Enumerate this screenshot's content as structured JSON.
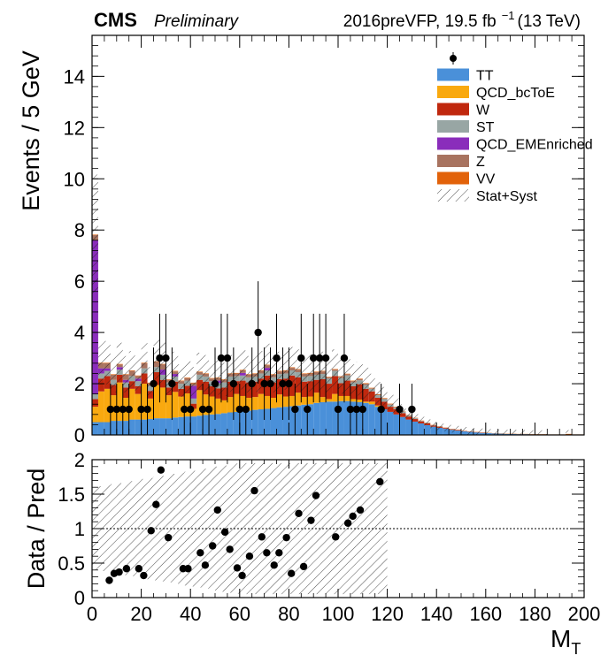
{
  "header": {
    "experiment": "CMS",
    "status": "Preliminary",
    "lumi_prefix": "2016preVFP, 19.5 fb",
    "lumi_exp": "−1",
    "lumi_suffix": "(13 TeV)"
  },
  "colors": {
    "TT": "#4a90d9",
    "QCD_bcToE": "#f9a90f",
    "W": "#c0280e",
    "ST": "#98a6a4",
    "QCD_EMEnriched": "#8a2dbb",
    "Z": "#a87360",
    "VV": "#e2620a"
  },
  "chart_data": [
    {
      "type": "bar",
      "stacked": true,
      "ylabel": "Events / 5 GeV",
      "xlim": [
        0,
        200
      ],
      "ylim": [
        0,
        15.6
      ],
      "bin_width": 2.5,
      "x_start": 0,
      "x_ticks": [
        0,
        20,
        40,
        60,
        80,
        100,
        120,
        140,
        160,
        180,
        200
      ],
      "y_ticks": [
        0,
        2,
        4,
        6,
        8,
        10,
        12,
        14
      ],
      "legend_position": "top-right",
      "series": [
        {
          "name": "TT",
          "values": [
            0.5,
            0.5,
            0.5,
            0.55,
            0.55,
            0.55,
            0.6,
            0.6,
            0.6,
            0.62,
            0.65,
            0.65,
            0.65,
            0.68,
            0.7,
            0.72,
            0.72,
            0.75,
            0.78,
            0.8,
            0.82,
            0.85,
            0.88,
            0.9,
            0.92,
            0.95,
            0.98,
            1.0,
            1.02,
            1.05,
            1.08,
            1.1,
            1.12,
            1.15,
            1.18,
            1.2,
            1.25,
            1.28,
            1.3,
            1.3,
            1.32,
            1.32,
            1.3,
            1.28,
            1.25,
            1.2,
            1.1,
            1.0,
            0.9,
            0.8,
            0.7,
            0.6,
            0.52,
            0.45,
            0.38,
            0.32,
            0.28,
            0.24,
            0.2,
            0.17,
            0.14,
            0.12,
            0.1,
            0.08,
            0.07,
            0.06,
            0.05,
            0.04,
            0.04,
            0.03,
            0.03,
            0.02,
            0.02,
            0.02,
            0.01,
            0.01,
            0.01,
            0.01,
            0.01,
            0.01
          ]
        },
        {
          "name": "QCD_bcToE",
          "values": [
            0.6,
            1.2,
            1.3,
            1.0,
            1.5,
            0.9,
            1.2,
            1.0,
            1.4,
            0.8,
            1.3,
            1.2,
            0.9,
            1.0,
            0.8,
            0.9,
            0.3,
            1.0,
            0.8,
            0.7,
            0.6,
            0.5,
            0.6,
            0.7,
            0.6,
            0.5,
            0.5,
            0.6,
            0.5,
            0.4,
            0.5,
            0.4,
            0.4,
            0.5,
            0.3,
            0.3,
            0.4,
            0.2,
            0.1,
            0.3,
            0.2,
            0.2,
            0.1,
            0.1,
            0.05,
            0.1,
            0.05,
            0.0,
            0.0,
            0.0,
            0,
            0,
            0,
            0,
            0,
            0,
            0,
            0,
            0,
            0,
            0,
            0,
            0,
            0,
            0,
            0,
            0,
            0,
            0,
            0,
            0,
            0,
            0,
            0,
            0,
            0,
            0,
            0,
            0,
            0
          ]
        },
        {
          "name": "W",
          "values": [
            0.3,
            0.5,
            0.5,
            0.4,
            0.3,
            0.4,
            0.3,
            0.3,
            0.4,
            0.3,
            0.5,
            0.3,
            0.3,
            0.4,
            0.3,
            0.3,
            0.2,
            0.4,
            0.5,
            0.4,
            0.4,
            0.5,
            0.6,
            0.5,
            0.6,
            0.6,
            0.6,
            0.6,
            0.8,
            0.6,
            0.6,
            0.7,
            0.8,
            0.6,
            0.6,
            0.6,
            0.5,
            0.7,
            0.6,
            0.7,
            0.5,
            0.6,
            0.5,
            0.6,
            0.5,
            0.4,
            0.3,
            0.3,
            0.2,
            0.2,
            0.15,
            0.12,
            0.1,
            0.08,
            0.07,
            0.05,
            0.04,
            0.03,
            0.02,
            0.02,
            0.01,
            0.01,
            0.01,
            0.01,
            0,
            0,
            0,
            0,
            0,
            0,
            0,
            0,
            0,
            0,
            0,
            0,
            0,
            0,
            0,
            0
          ]
        },
        {
          "name": "ST",
          "values": [
            0.2,
            0.2,
            0.2,
            0.2,
            0.2,
            0.2,
            0.2,
            0.2,
            0.2,
            0.2,
            0.2,
            0.2,
            0.2,
            0.2,
            0.2,
            0.2,
            0.2,
            0.2,
            0.2,
            0.2,
            0.2,
            0.2,
            0.2,
            0.2,
            0.2,
            0.2,
            0.2,
            0.2,
            0.2,
            0.2,
            0.2,
            0.2,
            0.2,
            0.2,
            0.2,
            0.2,
            0.2,
            0.2,
            0.2,
            0.2,
            0.2,
            0.2,
            0.15,
            0.15,
            0.15,
            0.1,
            0.1,
            0.1,
            0.08,
            0.06,
            0.05,
            0.04,
            0.03,
            0.02,
            0.02,
            0.01,
            0.01,
            0.01,
            0.01,
            0,
            0,
            0,
            0,
            0,
            0,
            0,
            0,
            0,
            0,
            0,
            0,
            0,
            0,
            0,
            0,
            0,
            0,
            0,
            0,
            0
          ]
        },
        {
          "name": "QCD_EMEnriched",
          "values": [
            6.0,
            0.2,
            0.1,
            0.0,
            0.1,
            0.1,
            0.0,
            0.1,
            0.0,
            0.0,
            0.0,
            0.2,
            0.0,
            0.1,
            0.0,
            0.0,
            0.5,
            0.0,
            0.0,
            0.0,
            0.1,
            0.0,
            0.0,
            0.0,
            0.1,
            0.0,
            0.0,
            0.0,
            0.1,
            0.0,
            0.0,
            0.0,
            0.0,
            0.0,
            0.0,
            0.0,
            0.0,
            0.0,
            0.0,
            0.0,
            0,
            0,
            0,
            0,
            0,
            0,
            0,
            0,
            0,
            0,
            0,
            0,
            0,
            0,
            0,
            0,
            0,
            0,
            0,
            0,
            0,
            0,
            0,
            0,
            0,
            0,
            0,
            0,
            0,
            0,
            0,
            0,
            0,
            0,
            0,
            0,
            0,
            0,
            0,
            0
          ]
        },
        {
          "name": "Z",
          "values": [
            0.2,
            0.2,
            0.2,
            0.2,
            0.1,
            0.2,
            0.2,
            0.1,
            0.2,
            0.1,
            0.2,
            0.2,
            0.1,
            0.1,
            0.1,
            0.1,
            0.1,
            0.1,
            0.1,
            0.1,
            0.1,
            0.1,
            0.1,
            0.1,
            0.1,
            0.1,
            0.1,
            0.1,
            0.1,
            0.1,
            0.1,
            0.1,
            0.1,
            0.1,
            0.1,
            0.1,
            0.1,
            0.1,
            0.05,
            0.05,
            0.05,
            0.05,
            0.05,
            0.05,
            0.05,
            0.02,
            0.02,
            0.02,
            0.02,
            0.02,
            0.01,
            0.01,
            0.01,
            0,
            0,
            0,
            0,
            0,
            0,
            0,
            0,
            0,
            0,
            0,
            0,
            0,
            0,
            0,
            0,
            0,
            0,
            0,
            0,
            0,
            0,
            0,
            0,
            0,
            0,
            0
          ]
        },
        {
          "name": "VV",
          "values": [
            0.02,
            0.02,
            0.02,
            0.02,
            0.02,
            0.02,
            0.02,
            0.02,
            0.02,
            0.02,
            0.02,
            0.02,
            0.02,
            0.02,
            0.02,
            0.02,
            0.02,
            0.02,
            0.02,
            0.02,
            0.02,
            0.02,
            0.02,
            0.02,
            0.02,
            0.02,
            0.02,
            0.02,
            0.02,
            0.02,
            0.02,
            0.02,
            0.02,
            0.02,
            0.02,
            0.02,
            0.02,
            0.02,
            0.02,
            0.02,
            0.02,
            0.02,
            0.02,
            0.02,
            0.02,
            0.02,
            0.02,
            0.02,
            0.02,
            0.02,
            0.01,
            0.01,
            0.01,
            0.01,
            0.01,
            0.01,
            0.01,
            0.01,
            0.01,
            0.01,
            0.01,
            0.01,
            0.01,
            0.01,
            0.01,
            0.01,
            0.01,
            0.01,
            0.01,
            0.01,
            0.01,
            0.01,
            0.01,
            0.01,
            0.01,
            0.01,
            0.01,
            0.03,
            0.01,
            0.01
          ]
        }
      ],
      "data_points": [
        {
          "x": 7.5,
          "y": 1
        },
        {
          "x": 10,
          "y": 1
        },
        {
          "x": 12.5,
          "y": 1
        },
        {
          "x": 15,
          "y": 1
        },
        {
          "x": 20,
          "y": 1
        },
        {
          "x": 22.5,
          "y": 1
        },
        {
          "x": 25,
          "y": 2
        },
        {
          "x": 27.5,
          "y": 3
        },
        {
          "x": 30,
          "y": 3
        },
        {
          "x": 32.5,
          "y": 2
        },
        {
          "x": 37.5,
          "y": 1
        },
        {
          "x": 40,
          "y": 1
        },
        {
          "x": 45,
          "y": 1
        },
        {
          "x": 47.5,
          "y": 1
        },
        {
          "x": 50,
          "y": 2
        },
        {
          "x": 52.5,
          "y": 3
        },
        {
          "x": 55,
          "y": 3
        },
        {
          "x": 57.5,
          "y": 2
        },
        {
          "x": 60,
          "y": 1
        },
        {
          "x": 62.5,
          "y": 1
        },
        {
          "x": 65,
          "y": 2
        },
        {
          "x": 67.5,
          "y": 4
        },
        {
          "x": 70,
          "y": 2
        },
        {
          "x": 72.5,
          "y": 2
        },
        {
          "x": 75,
          "y": 3
        },
        {
          "x": 77.5,
          "y": 2
        },
        {
          "x": 80,
          "y": 2
        },
        {
          "x": 82.5,
          "y": 1
        },
        {
          "x": 85,
          "y": 3
        },
        {
          "x": 87.5,
          "y": 1
        },
        {
          "x": 90,
          "y": 3
        },
        {
          "x": 92.5,
          "y": 3
        },
        {
          "x": 95,
          "y": 3
        },
        {
          "x": 100,
          "y": 1
        },
        {
          "x": 102.5,
          "y": 3
        },
        {
          "x": 105,
          "y": 1
        },
        {
          "x": 107.5,
          "y": 1
        },
        {
          "x": 110,
          "y": 1
        },
        {
          "x": 117.5,
          "y": 1
        },
        {
          "x": 125,
          "y": 1
        },
        {
          "x": 130,
          "y": 1
        }
      ]
    },
    {
      "type": "scatter",
      "ylabel": "Data / Pred",
      "xlabel": "M",
      "xlabel_sub": "T",
      "xlim": [
        0,
        200
      ],
      "ylim": [
        0,
        2
      ],
      "reference_line": 1,
      "x_ticks": [
        0,
        20,
        40,
        60,
        80,
        100,
        120,
        140,
        160,
        180,
        200
      ],
      "y_ticks": [
        "0",
        "0.5",
        "1",
        "1.5",
        "2"
      ],
      "y_tick_values": [
        0,
        0.5,
        1,
        1.5,
        2
      ],
      "ratio_points": [
        {
          "x": 7,
          "y": 0.25
        },
        {
          "x": 9,
          "y": 0.35
        },
        {
          "x": 11,
          "y": 0.37
        },
        {
          "x": 14,
          "y": 0.42
        },
        {
          "x": 19,
          "y": 0.42
        },
        {
          "x": 21,
          "y": 0.32
        },
        {
          "x": 24,
          "y": 0.97
        },
        {
          "x": 26,
          "y": 1.35
        },
        {
          "x": 28,
          "y": 1.85
        },
        {
          "x": 31,
          "y": 0.87
        },
        {
          "x": 37,
          "y": 0.42
        },
        {
          "x": 39,
          "y": 0.42
        },
        {
          "x": 44,
          "y": 0.65
        },
        {
          "x": 46,
          "y": 0.47
        },
        {
          "x": 49,
          "y": 0.75
        },
        {
          "x": 51,
          "y": 1.27
        },
        {
          "x": 54,
          "y": 0.95
        },
        {
          "x": 56,
          "y": 0.7
        },
        {
          "x": 59,
          "y": 0.43
        },
        {
          "x": 61,
          "y": 0.32
        },
        {
          "x": 64,
          "y": 0.6
        },
        {
          "x": 66,
          "y": 1.55
        },
        {
          "x": 69,
          "y": 0.88
        },
        {
          "x": 71,
          "y": 0.65
        },
        {
          "x": 74,
          "y": 0.47
        },
        {
          "x": 76,
          "y": 0.65
        },
        {
          "x": 79,
          "y": 0.87
        },
        {
          "x": 81,
          "y": 0.35
        },
        {
          "x": 84,
          "y": 1.22
        },
        {
          "x": 86,
          "y": 0.45
        },
        {
          "x": 89,
          "y": 1.12
        },
        {
          "x": 91,
          "y": 1.48
        },
        {
          "x": 99,
          "y": 0.88
        },
        {
          "x": 104,
          "y": 1.08
        },
        {
          "x": 106,
          "y": 1.18
        },
        {
          "x": 109,
          "y": 1.27
        },
        {
          "x": 117,
          "y": 1.68
        }
      ]
    }
  ],
  "legend": {
    "data_label": "",
    "entries": [
      "TT",
      "QCD_bcToE",
      "W",
      "ST",
      "QCD_EMEnriched",
      "Z",
      "VV",
      "Stat+Syst"
    ]
  }
}
